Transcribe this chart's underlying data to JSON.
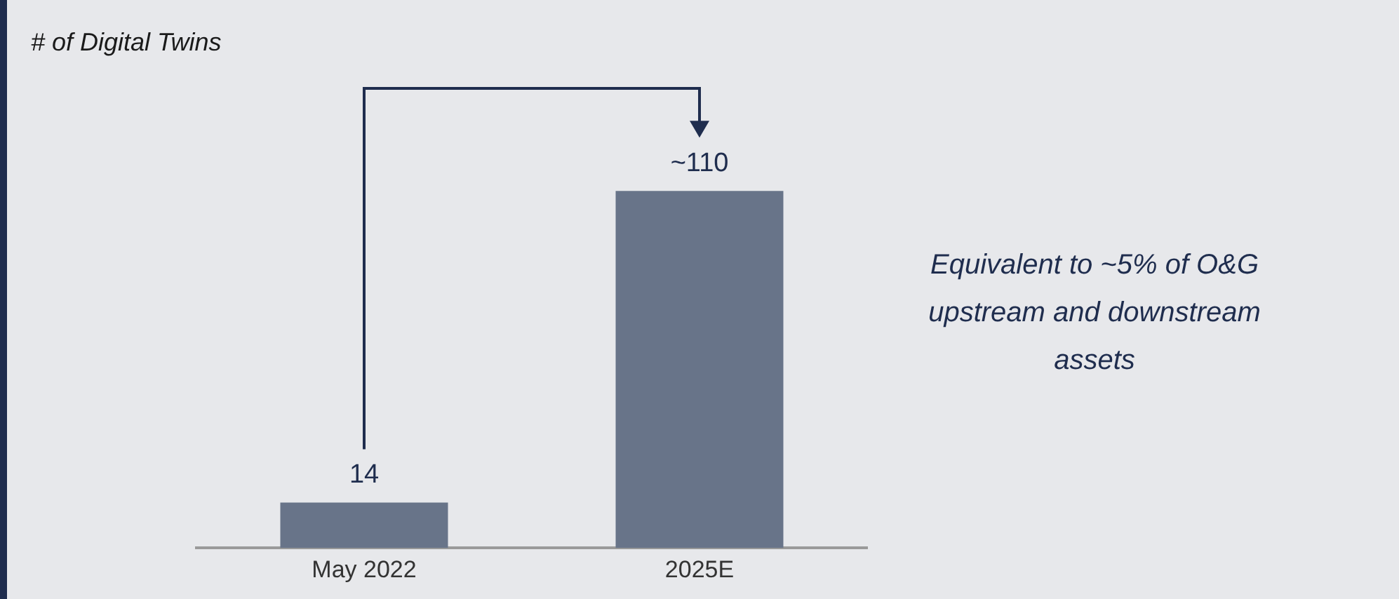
{
  "chart_data": {
    "type": "bar",
    "title": "# of Digital Twins",
    "categories": [
      "May 2022",
      "2025E"
    ],
    "values": [
      14,
      110
    ],
    "value_labels": [
      "14",
      "~110"
    ],
    "color": "#687489",
    "annotations": [
      "Equivalent to ~5% of O&G upstream and downstream assets"
    ],
    "grid": false,
    "legend": false
  }
}
